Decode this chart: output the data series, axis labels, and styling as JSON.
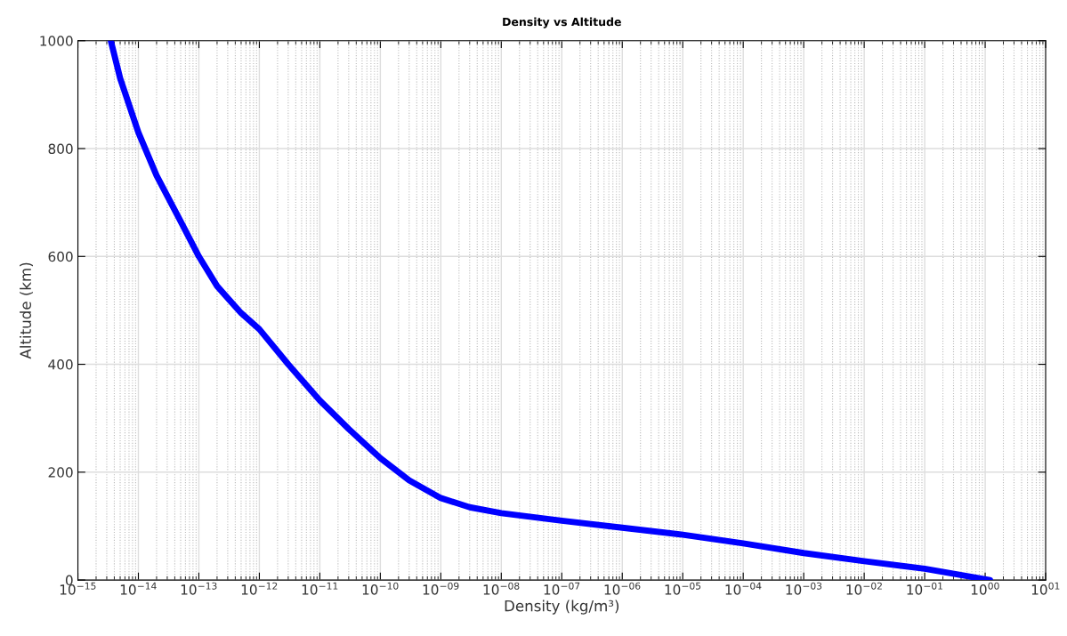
{
  "chart_data": {
    "type": "line",
    "title": "Density vs Altitude",
    "xlabel": "Density (kg/m³)",
    "ylabel": "Altitude (km)",
    "log": "x",
    "grid": true,
    "line_style": "solid",
    "xlim": [
      1e-15,
      10
    ],
    "ylim": [
      0,
      1000
    ],
    "xticks": [
      {
        "value": 1e-15,
        "label": "10$^{−15}$"
      },
      {
        "value": 1e-14,
        "label": "10$^{−14}$"
      },
      {
        "value": 1e-13,
        "label": "10$^{−13}$"
      },
      {
        "value": 1e-12,
        "label": "10$^{−12}$"
      },
      {
        "value": 1e-11,
        "label": "10$^{−11}$"
      },
      {
        "value": 1e-10,
        "label": "10$^{−10}$"
      },
      {
        "value": 1e-09,
        "label": "10$^{−09}$"
      },
      {
        "value": 1e-08,
        "label": "10$^{−08}$"
      },
      {
        "value": 1e-07,
        "label": "10$^{−07}$"
      },
      {
        "value": 1e-06,
        "label": "10$^{−06}$"
      },
      {
        "value": 1e-05,
        "label": "10$^{−05}$"
      },
      {
        "value": 0.0001,
        "label": "10$^{−04}$"
      },
      {
        "value": 0.001,
        "label": "10$^{−03}$"
      },
      {
        "value": 0.01,
        "label": "10$^{−02}$"
      },
      {
        "value": 0.1,
        "label": "10$^{−01}$"
      },
      {
        "value": 1,
        "label": "10$^{00}$"
      },
      {
        "value": 10,
        "label": "10$^{01}$"
      }
    ],
    "yticks": [
      0,
      200,
      400,
      600,
      800,
      1000
    ],
    "series": [
      {
        "color": "#0000ff",
        "x": [
          3.5e-15,
          5e-15,
          1e-14,
          2e-14,
          5e-14,
          1e-13,
          2e-13,
          5e-13,
          1e-12,
          3e-12,
          1e-11,
          3e-11,
          1e-10,
          3e-10,
          1e-09,
          3e-09,
          1e-08,
          1e-07,
          1e-06,
          1e-05,
          0.0001,
          0.001,
          0.01,
          0.1,
          1.2
        ],
        "values": [
          1000,
          930,
          830,
          750,
          665,
          600,
          545,
          495,
          465,
          400,
          333,
          280,
          226,
          185,
          152,
          135,
          124,
          110,
          97,
          84,
          68,
          50,
          35,
          21,
          0
        ]
      }
    ]
  }
}
